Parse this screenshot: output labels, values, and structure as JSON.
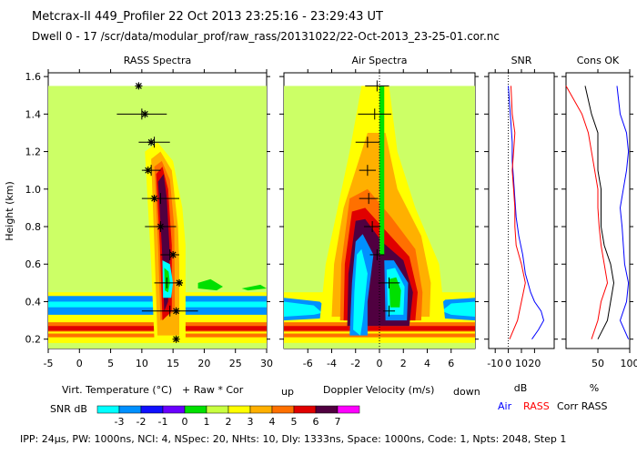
{
  "header": {
    "title": "Metcrax-II  449_Profiler  22 Oct 2013  23:25:16 - 23:29:43 UT",
    "dwell": "Dwell  0 - 17  /scr/data/modular_prof/raw_rass/20131022/22-Oct-2013_23-25-01.cor.nc"
  },
  "footer": {
    "params": "IPP: 24µs, PW: 1000ns, NCI: 4, NSpec: 20, NHts: 10, Dly: 1333ns, Space: 1000ns, Code: 1, Npts: 2048, Step 1"
  },
  "chart_data": [
    {
      "id": "rass",
      "type": "heatmap",
      "title": "RASS Spectra",
      "ylabel": "Height (km)",
      "xlabel": "Virt. Temperature (°C)",
      "legend_text": "+ Raw  * Cor",
      "xlim": [
        -5,
        30
      ],
      "ylim": [
        0.15,
        1.62
      ],
      "xticks": [
        "-5",
        "0",
        "5",
        "10",
        "15",
        "20",
        "25",
        "30"
      ],
      "xtick_values": [
        -5,
        0,
        5,
        10,
        15,
        20,
        25,
        30
      ],
      "yticks": [
        "0.2",
        "0.4",
        "0.6",
        "0.8",
        "1.0",
        "1.2",
        "1.4",
        "1.6"
      ],
      "ytick_values": [
        0.2,
        0.4,
        0.6,
        0.8,
        1.0,
        1.2,
        1.4,
        1.6
      ],
      "background_top_km": 1.55,
      "markers": [
        {
          "h": 1.55,
          "raw": null,
          "cor": 9.5,
          "err": 0
        },
        {
          "h": 1.4,
          "raw": 10.0,
          "cor": 10.5,
          "err": 4.0
        },
        {
          "h": 1.25,
          "raw": 12.0,
          "cor": 11.5,
          "err": 2.5
        },
        {
          "h": 1.1,
          "raw": 11.5,
          "cor": 11.0,
          "err": 1.5
        },
        {
          "h": 0.95,
          "raw": 13.0,
          "cor": 12.0,
          "err": 3.0
        },
        {
          "h": 0.8,
          "raw": 13.0,
          "cor": 13.0,
          "err": 2.5
        },
        {
          "h": 0.65,
          "raw": 14.5,
          "cor": 15.0,
          "err": 1.5
        },
        {
          "h": 0.5,
          "raw": 14.0,
          "cor": 16.0,
          "err": 2.0
        },
        {
          "h": 0.35,
          "raw": 14.5,
          "cor": 15.5,
          "err": 4.5
        },
        {
          "h": 0.2,
          "raw": null,
          "cor": 15.5,
          "err": 0
        }
      ]
    },
    {
      "id": "air",
      "type": "heatmap",
      "title": "Air Spectra",
      "xlabel": "Doppler Velocity (m/s)",
      "xlabel_left": "up",
      "xlabel_right": "down",
      "xlim": [
        -8,
        8
      ],
      "ylim": [
        0.15,
        1.62
      ],
      "xticks": [
        "-6",
        "-4",
        "-2",
        "0",
        "2",
        "4",
        "6"
      ],
      "xtick_values": [
        -6,
        -4,
        -2,
        0,
        2,
        4,
        6
      ],
      "markers": [
        {
          "h": 1.55,
          "v": -0.2,
          "err": 1.0
        },
        {
          "h": 1.4,
          "v": -0.4,
          "err": 1.4
        },
        {
          "h": 1.25,
          "v": -1.0,
          "err": 1.0
        },
        {
          "h": 1.1,
          "v": -1.0,
          "err": 0.7
        },
        {
          "h": 0.95,
          "v": -0.9,
          "err": 0.8
        },
        {
          "h": 0.8,
          "v": -0.6,
          "err": 0.7
        },
        {
          "h": 0.65,
          "v": -0.2,
          "err": 0.6
        },
        {
          "h": 0.5,
          "v": 0.8,
          "err": 0.9
        },
        {
          "h": 0.35,
          "v": 0.8,
          "err": 0.5
        }
      ]
    },
    {
      "id": "snr",
      "type": "line",
      "title": "SNR",
      "xlabel": "dB",
      "xlim": [
        -15,
        35
      ],
      "xticks": [
        "-10",
        "0",
        "10",
        "20"
      ],
      "xtick_values": [
        -10,
        0,
        10,
        20
      ],
      "series": [
        {
          "name": "Air",
          "color": "#0000ff",
          "h": [
            0.2,
            0.25,
            0.3,
            0.35,
            0.4,
            0.45,
            0.55,
            0.65,
            0.75,
            0.85,
            0.95,
            1.05,
            1.15,
            1.25,
            1.35,
            1.45,
            1.55
          ],
          "x": [
            18,
            23,
            27,
            25,
            20,
            17,
            13,
            11,
            8,
            6,
            5,
            4,
            3,
            3,
            2,
            1,
            0
          ]
        },
        {
          "name": "RASS",
          "color": "#ff0000",
          "h": [
            0.2,
            0.3,
            0.4,
            0.5,
            0.6,
            0.7,
            0.8,
            0.9,
            1.0,
            1.1,
            1.2,
            1.3,
            1.4,
            1.55
          ],
          "x": [
            1,
            7,
            10,
            13,
            10,
            6,
            5,
            5,
            4,
            3,
            4,
            5,
            3,
            2
          ]
        }
      ],
      "legend": [
        "Air",
        "RASS"
      ]
    },
    {
      "id": "cons",
      "type": "line",
      "title": "Cons OK",
      "xlabel": "%",
      "xlim": [
        0,
        100
      ],
      "xticks": [
        "50",
        "100"
      ],
      "xtick_values": [
        50,
        100
      ],
      "series": [
        {
          "name": "Air",
          "color": "#0000ff",
          "h": [
            0.2,
            0.3,
            0.4,
            0.5,
            0.6,
            0.7,
            0.8,
            0.9,
            1.0,
            1.1,
            1.2,
            1.3,
            1.4,
            1.55
          ],
          "x": [
            98,
            85,
            95,
            98,
            92,
            90,
            88,
            85,
            90,
            95,
            98,
            95,
            85,
            80
          ]
        },
        {
          "name": "RASS",
          "color": "#ff0000",
          "h": [
            0.2,
            0.3,
            0.4,
            0.5,
            0.6,
            0.7,
            0.8,
            0.9,
            1.0,
            1.1,
            1.2,
            1.3,
            1.4,
            1.55
          ],
          "x": [
            40,
            50,
            55,
            65,
            60,
            55,
            52,
            50,
            50,
            45,
            40,
            35,
            25,
            0
          ]
        },
        {
          "name": "Corr RASS",
          "color": "#000000",
          "h": [
            0.2,
            0.3,
            0.4,
            0.5,
            0.6,
            0.7,
            0.8,
            0.9,
            1.0,
            1.1,
            1.2,
            1.3,
            1.4,
            1.55
          ],
          "x": [
            50,
            65,
            70,
            75,
            70,
            60,
            55,
            55,
            55,
            50,
            50,
            50,
            40,
            30
          ]
        }
      ],
      "legend": [
        "Corr RASS"
      ]
    }
  ],
  "snr_legend": {
    "label": "SNR dB",
    "ticks": [
      "-3",
      "-2",
      "-1",
      "0",
      "1",
      "2",
      "3",
      "4",
      "5",
      "6",
      "7"
    ],
    "colors": [
      "#00ffff",
      "#0090ff",
      "#1010ff",
      "#6a00ff",
      "#00e000",
      "#c8ff40",
      "#ffff00",
      "#ffb000",
      "#ff7000",
      "#e00000",
      "#500040",
      "#ff00ff"
    ]
  },
  "colors": {
    "bg_field": "#ccff66",
    "axis": "#000000"
  }
}
